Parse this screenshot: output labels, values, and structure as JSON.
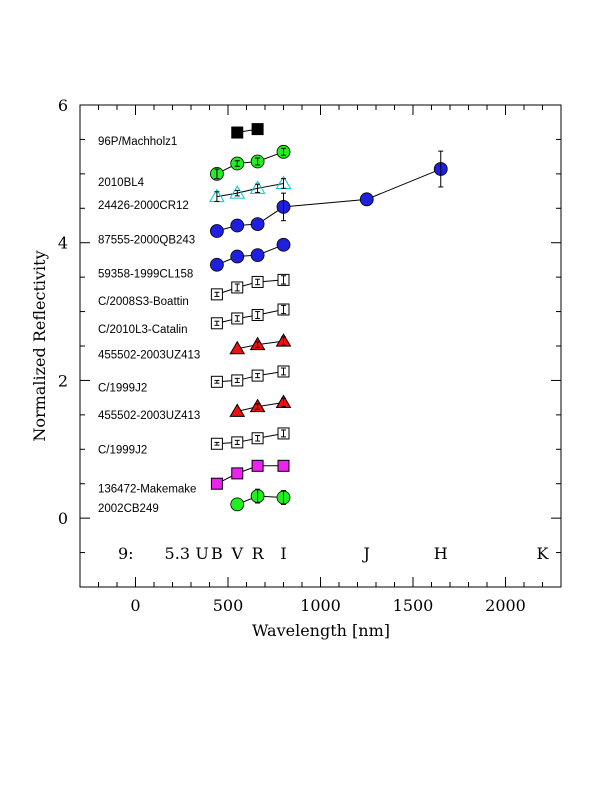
{
  "chart_data": {
    "type": "scatter",
    "xlabel": "Wavelength [nm]",
    "ylabel": "Normalized Reflectivity",
    "xlim": [
      -300,
      2300
    ],
    "ylim": [
      -1,
      6
    ],
    "x_ticks": [
      0,
      500,
      1000,
      1500,
      2000
    ],
    "y_ticks": [
      0,
      2,
      4,
      6
    ],
    "grid": false,
    "band_annotation": {
      "prefix": "9:",
      "value": "5.3",
      "bands": [
        {
          "label": "U",
          "x": 360
        },
        {
          "label": "B",
          "x": 440
        },
        {
          "label": "V",
          "x": 550
        },
        {
          "label": "R",
          "x": 660
        },
        {
          "label": "I",
          "x": 800
        },
        {
          "label": "J",
          "x": 1250
        },
        {
          "label": "H",
          "x": 1650
        },
        {
          "label": "K",
          "x": 2200
        }
      ]
    },
    "series": [
      {
        "name": "96P/Machholz1",
        "marker": "square",
        "fill": "#000000",
        "stroke": "#000000",
        "label_y": 5.48,
        "points": [
          {
            "x": 550,
            "y": 5.6,
            "err": 0.0
          },
          {
            "x": 660,
            "y": 5.65,
            "err": 0.0
          }
        ]
      },
      {
        "name": "2010BL4",
        "marker": "circle",
        "fill": "#22ee22",
        "stroke": "#000000",
        "label_y": 4.88,
        "points": [
          {
            "x": 440,
            "y": 5.0,
            "err": 0.07
          },
          {
            "x": 550,
            "y": 5.15,
            "err": 0.04
          },
          {
            "x": 660,
            "y": 5.18,
            "err": 0.05
          },
          {
            "x": 800,
            "y": 5.32,
            "err": 0.05
          }
        ]
      },
      {
        "name": "24426-2000CR12",
        "marker": "triangle-open",
        "fill": "none",
        "stroke": "#00cccc",
        "label_y": 4.55,
        "points": [
          {
            "x": 440,
            "y": 4.67,
            "err": 0.07
          },
          {
            "x": 550,
            "y": 4.72,
            "err": 0.04
          },
          {
            "x": 660,
            "y": 4.79,
            "err": 0.06
          },
          {
            "x": 800,
            "y": 4.86,
            "err": 0.07
          }
        ]
      },
      {
        "name": "87555-2000QB243",
        "marker": "circle",
        "fill": "#1f1fdf",
        "stroke": "#000000",
        "label_y": 4.05,
        "points": [
          {
            "x": 440,
            "y": 4.17,
            "err": 0.0
          },
          {
            "x": 550,
            "y": 4.25,
            "err": 0.0
          },
          {
            "x": 660,
            "y": 4.27,
            "err": 0.0
          },
          {
            "x": 800,
            "y": 4.52,
            "err": 0.2
          },
          {
            "x": 1250,
            "y": 4.63,
            "err": 0.0
          },
          {
            "x": 1650,
            "y": 5.07,
            "err": 0.26
          }
        ]
      },
      {
        "name": "59358-1999CL158",
        "marker": "circle",
        "fill": "#1f1fdf",
        "stroke": "#000000",
        "label_y": 3.55,
        "points": [
          {
            "x": 440,
            "y": 3.68,
            "err": 0.0
          },
          {
            "x": 550,
            "y": 3.8,
            "err": 0.0
          },
          {
            "x": 660,
            "y": 3.82,
            "err": 0.0
          },
          {
            "x": 800,
            "y": 3.97,
            "err": 0.0
          }
        ]
      },
      {
        "name": "C/2008S3-Boattin",
        "marker": "square-open",
        "fill": "#ffffff",
        "stroke": "#000000",
        "label_y": 3.15,
        "points": [
          {
            "x": 440,
            "y": 3.25,
            "err": 0.03
          },
          {
            "x": 550,
            "y": 3.35,
            "err": 0.05
          },
          {
            "x": 660,
            "y": 3.43,
            "err": 0.04
          },
          {
            "x": 800,
            "y": 3.46,
            "err": 0.06
          }
        ]
      },
      {
        "name": "C/2010L3-Catalin",
        "marker": "square-open",
        "fill": "#ffffff",
        "stroke": "#000000",
        "label_y": 2.75,
        "points": [
          {
            "x": 440,
            "y": 2.83,
            "err": 0.03
          },
          {
            "x": 550,
            "y": 2.9,
            "err": 0.04
          },
          {
            "x": 660,
            "y": 2.95,
            "err": 0.05
          },
          {
            "x": 800,
            "y": 3.03,
            "err": 0.06
          }
        ]
      },
      {
        "name": "455502-2003UZ413",
        "marker": "triangle",
        "fill": "#ee1111",
        "stroke": "#000000",
        "label_y": 2.38,
        "points": [
          {
            "x": 550,
            "y": 2.46,
            "err": 0.0
          },
          {
            "x": 660,
            "y": 2.52,
            "err": 0.04
          },
          {
            "x": 800,
            "y": 2.57,
            "err": 0.06
          }
        ]
      },
      {
        "name": "C/1999J2",
        "marker": "square-open",
        "fill": "#ffffff",
        "stroke": "#000000",
        "label_y": 1.9,
        "points": [
          {
            "x": 440,
            "y": 1.98,
            "err": 0.02
          },
          {
            "x": 550,
            "y": 2.0,
            "err": 0.03
          },
          {
            "x": 660,
            "y": 2.07,
            "err": 0.03
          },
          {
            "x": 800,
            "y": 2.13,
            "err": 0.05
          }
        ]
      },
      {
        "name": "455502-2003UZ413",
        "marker": "triangle",
        "fill": "#ee1111",
        "stroke": "#000000",
        "label_y": 1.5,
        "points": [
          {
            "x": 550,
            "y": 1.55,
            "err": 0.0
          },
          {
            "x": 660,
            "y": 1.62,
            "err": 0.04
          },
          {
            "x": 800,
            "y": 1.68,
            "err": 0.06
          }
        ]
      },
      {
        "name": "C/1999J2",
        "marker": "square-open",
        "fill": "#ffffff",
        "stroke": "#000000",
        "label_y": 1.0,
        "points": [
          {
            "x": 440,
            "y": 1.08,
            "err": 0.02
          },
          {
            "x": 550,
            "y": 1.1,
            "err": 0.03
          },
          {
            "x": 660,
            "y": 1.16,
            "err": 0.04
          },
          {
            "x": 800,
            "y": 1.23,
            "err": 0.05
          }
        ]
      },
      {
        "name": "136472-Makemake",
        "marker": "square",
        "fill": "#ee22ee",
        "stroke": "#000000",
        "label_y": 0.43,
        "points": [
          {
            "x": 440,
            "y": 0.5,
            "err": 0.0
          },
          {
            "x": 550,
            "y": 0.65,
            "err": 0.0
          },
          {
            "x": 660,
            "y": 0.76,
            "err": 0.0
          },
          {
            "x": 800,
            "y": 0.76,
            "err": 0.0
          }
        ]
      },
      {
        "name": "2002CB249",
        "marker": "circle",
        "fill": "#22ee22",
        "stroke": "#000000",
        "label_y": 0.15,
        "points": [
          {
            "x": 550,
            "y": 0.2,
            "err": 0.0
          },
          {
            "x": 660,
            "y": 0.32,
            "err": 0.1
          },
          {
            "x": 800,
            "y": 0.3,
            "err": 0.1
          }
        ]
      }
    ]
  }
}
